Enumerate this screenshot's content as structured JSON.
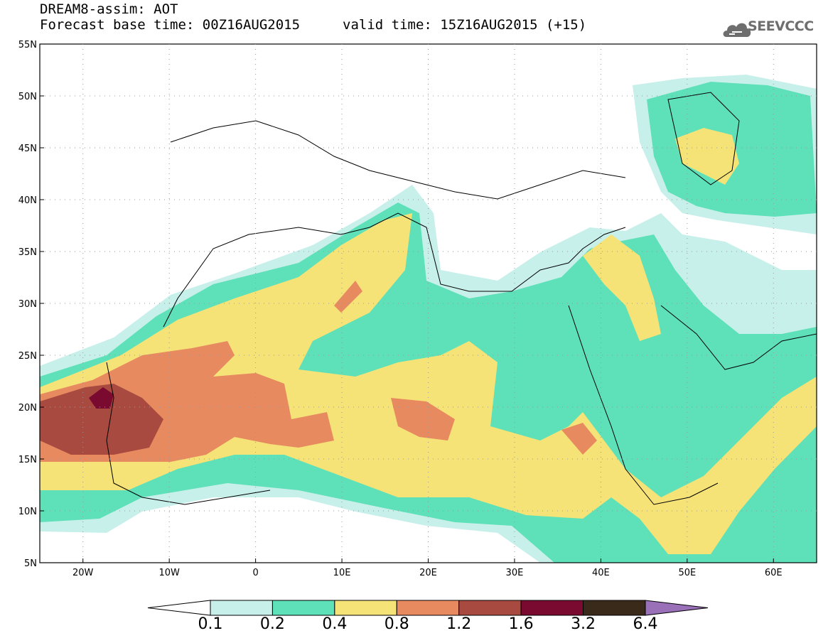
{
  "header": {
    "title": "DREAM8-assim: AOT",
    "base_time": "Forecast base time: 00Z16AUG2015",
    "valid_time": "valid time: 15Z16AUG2015 (+15)"
  },
  "logo": {
    "icon": "cloud-icon",
    "text": "SEEVCCC"
  },
  "map": {
    "lon_ticks": [
      "20W",
      "10W",
      "0",
      "10E",
      "20E",
      "30E",
      "40E",
      "50E",
      "60E"
    ],
    "lat_ticks": [
      "55N",
      "50N",
      "45N",
      "40N",
      "35N",
      "30N",
      "25N",
      "20N",
      "15N",
      "10N",
      "5N"
    ],
    "lon_range": [
      -25,
      65
    ],
    "lat_range": [
      5,
      55
    ]
  },
  "colorbar": {
    "labels": [
      "0.1",
      "0.2",
      "0.4",
      "0.8",
      "1.2",
      "1.6",
      "3.2",
      "6.4"
    ],
    "colors": [
      "#ffffff",
      "#c8f0eb",
      "#5ee0b8",
      "#f5e378",
      "#e88a60",
      "#a84a40",
      "#7a0a30",
      "#3a2a1a",
      "#9a70b8"
    ]
  }
}
